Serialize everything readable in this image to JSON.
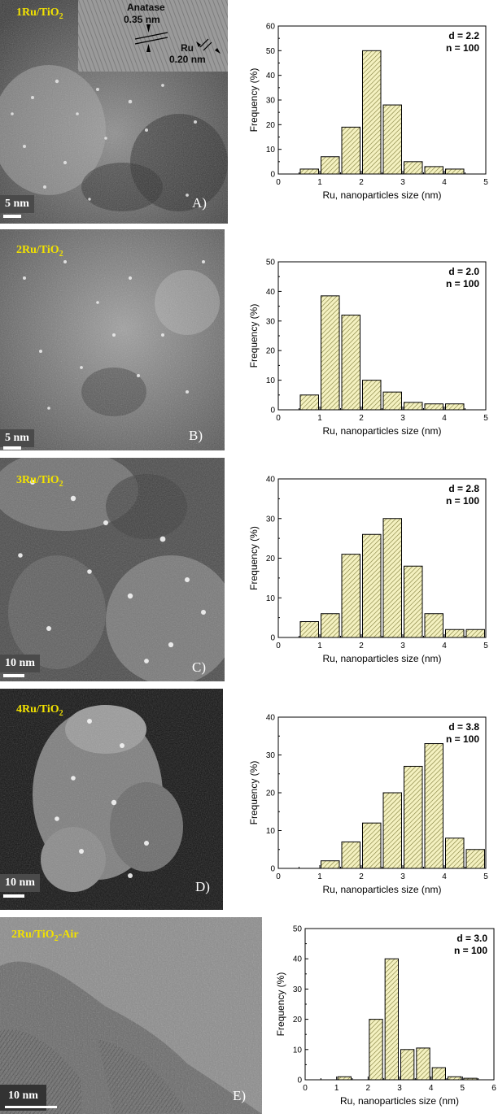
{
  "panels": [
    {
      "sample_label": "1Ru/TiO",
      "sample_sub": "2",
      "sample_suffix": "",
      "scale_label": "5 nm",
      "panel_letter": "A)",
      "inset": {
        "phase": "Anatase",
        "phase_spacing": "0.35 nm",
        "metal": "Ru",
        "metal_spacing": "0.20 nm"
      }
    },
    {
      "sample_label": "2Ru/TiO",
      "sample_sub": "2",
      "sample_suffix": "",
      "scale_label": "5 nm",
      "panel_letter": "B)"
    },
    {
      "sample_label": "3Ru/TiO",
      "sample_sub": "2",
      "sample_suffix": "",
      "scale_label": "10 nm",
      "panel_letter": "C)"
    },
    {
      "sample_label": "4Ru/TiO",
      "sample_sub": "2",
      "sample_suffix": "",
      "scale_label": "10 nm",
      "panel_letter": "D)"
    },
    {
      "sample_label": "2Ru/TiO",
      "sample_sub": "2",
      "sample_suffix": "-Air",
      "scale_label": "10 nm",
      "panel_letter": "E)"
    }
  ],
  "chart_data": [
    {
      "type": "bar",
      "xlabel": "Ru, nanoparticles size  (nm)",
      "ylabel": "Frequency (%)",
      "xlim": [
        0,
        5
      ],
      "ylim": [
        0,
        60
      ],
      "xticks": [
        0,
        1,
        2,
        3,
        4,
        5
      ],
      "yticks": [
        0,
        10,
        20,
        30,
        40,
        50,
        60
      ],
      "bins": [
        [
          0.5,
          1.0
        ],
        [
          1.0,
          1.5
        ],
        [
          1.5,
          2.0
        ],
        [
          2.0,
          2.5
        ],
        [
          2.5,
          3.0
        ],
        [
          3.0,
          3.5
        ],
        [
          3.5,
          4.0
        ],
        [
          4.0,
          4.5
        ]
      ],
      "values": [
        2,
        7,
        19,
        50,
        28,
        5,
        3,
        2
      ],
      "stats": [
        "d = 2.2",
        "n = 100"
      ],
      "bar_color": "#f4f1c0",
      "hatch_color": "#7d7a3a"
    },
    {
      "type": "bar",
      "xlabel": "Ru, nanoparticles size  (nm)",
      "ylabel": "Frequency (%)",
      "xlim": [
        0,
        5
      ],
      "ylim": [
        0,
        50
      ],
      "xticks": [
        0,
        1,
        2,
        3,
        4,
        5
      ],
      "yticks": [
        0,
        10,
        20,
        30,
        40,
        50
      ],
      "bins": [
        [
          0.5,
          1.0
        ],
        [
          1.0,
          1.5
        ],
        [
          1.5,
          2.0
        ],
        [
          2.0,
          2.5
        ],
        [
          2.5,
          3.0
        ],
        [
          3.0,
          3.5
        ],
        [
          3.5,
          4.0
        ],
        [
          4.0,
          4.5
        ]
      ],
      "values": [
        5,
        38.5,
        32,
        10,
        6,
        2.5,
        2,
        2
      ],
      "stats": [
        "d = 2.0",
        "n = 100"
      ],
      "bar_color": "#f4f1c0",
      "hatch_color": "#7d7a3a"
    },
    {
      "type": "bar",
      "xlabel": "Ru, nanoparticles size  (nm)",
      "ylabel": "Frequency (%)",
      "xlim": [
        0,
        5
      ],
      "ylim": [
        0,
        40
      ],
      "xticks": [
        0,
        1,
        2,
        3,
        4,
        5
      ],
      "yticks": [
        0,
        10,
        20,
        30,
        40
      ],
      "bins": [
        [
          0.5,
          1.0
        ],
        [
          1.0,
          1.5
        ],
        [
          1.5,
          2.0
        ],
        [
          2.0,
          2.5
        ],
        [
          2.5,
          3.0
        ],
        [
          3.0,
          3.5
        ],
        [
          3.5,
          4.0
        ],
        [
          4.0,
          4.5
        ],
        [
          4.5,
          5.0
        ]
      ],
      "values": [
        4,
        6,
        21,
        26,
        30,
        18,
        6,
        2,
        2
      ],
      "stats": [
        "d = 2.8",
        "n = 100"
      ],
      "bar_color": "#f4f1c0",
      "hatch_color": "#7d7a3a"
    },
    {
      "type": "bar",
      "xlabel": "Ru, nanoparticles size  (nm)",
      "ylabel": "Frequency (%)",
      "xlim": [
        0,
        5
      ],
      "ylim": [
        0,
        40
      ],
      "xticks": [
        0,
        1,
        2,
        3,
        4,
        5
      ],
      "yticks": [
        0,
        10,
        20,
        30,
        40
      ],
      "bins": [
        [
          1.0,
          1.5
        ],
        [
          1.5,
          2.0
        ],
        [
          2.0,
          2.5
        ],
        [
          2.5,
          3.0
        ],
        [
          3.0,
          3.5
        ],
        [
          3.5,
          4.0
        ],
        [
          4.0,
          4.5
        ],
        [
          4.5,
          5.0
        ]
      ],
      "values": [
        2,
        7,
        12,
        20,
        27,
        33,
        8,
        5
      ],
      "stats": [
        "d = 3.8",
        "n = 100"
      ],
      "bar_color": "#f4f1c0",
      "hatch_color": "#7d7a3a"
    },
    {
      "type": "bar",
      "xlabel": "Ru, nanoparticles size  (nm)",
      "ylabel": "Frequency (%)",
      "xlim": [
        0,
        6
      ],
      "ylim": [
        0,
        50
      ],
      "xticks": [
        0,
        1,
        2,
        3,
        4,
        5,
        6
      ],
      "yticks": [
        0,
        10,
        20,
        30,
        40,
        50
      ],
      "bins": [
        [
          1.0,
          1.5
        ],
        [
          2.0,
          2.5
        ],
        [
          2.5,
          3.0
        ],
        [
          3.0,
          3.5
        ],
        [
          3.5,
          4.0
        ],
        [
          4.0,
          4.5
        ],
        [
          4.5,
          5.0
        ],
        [
          5.0,
          5.5
        ]
      ],
      "values": [
        1,
        20,
        40,
        10,
        10.5,
        4,
        1,
        0.5
      ],
      "stats": [
        "d = 3.0",
        "n = 100"
      ],
      "bar_color": "#f4f1c0",
      "hatch_color": "#7d7a3a"
    }
  ]
}
